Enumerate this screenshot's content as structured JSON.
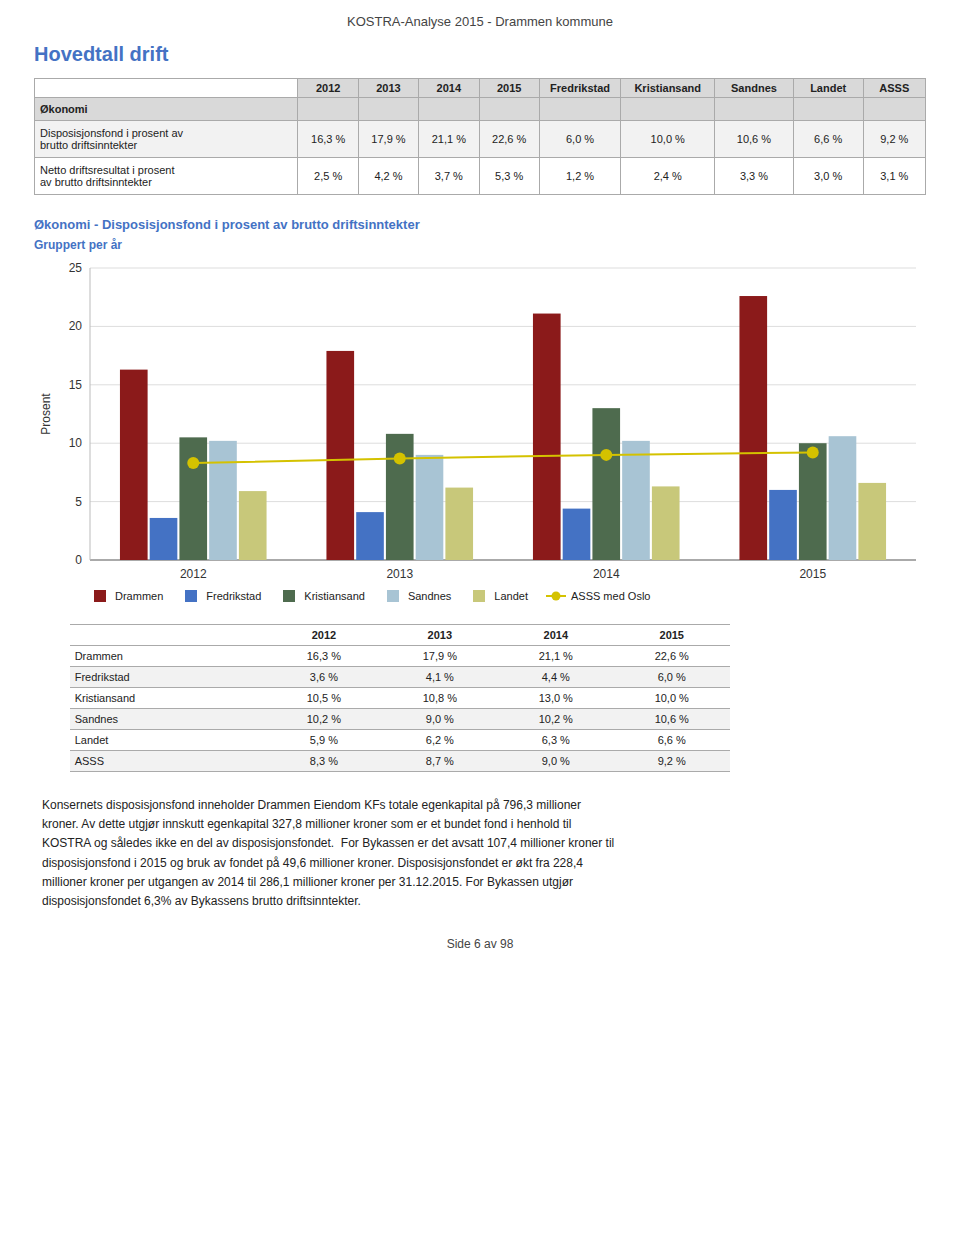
{
  "page_title": "KOSTRA-Analyse 2015 - Drammen kommune",
  "section_title": "Hovedtall drift",
  "table1": {
    "headers": [
      null,
      "2012",
      "2013",
      "2014",
      "2015",
      "Fredrikstad",
      "Kristiansand",
      "Sandnes",
      "Landet",
      "ASSS"
    ],
    "rows": [
      [
        "Økonomi",
        null,
        null,
        null,
        null,
        null,
        null,
        null,
        null,
        null
      ],
      [
        "Disposisjonsfond i prosent av\nbrutto driftsinntekter",
        "16,3 %",
        "17,9 %",
        "21,1 %",
        "22,6 %",
        "6,0 %",
        "10,0 %",
        "10,6 %",
        "6,6 %",
        "9,2 %"
      ],
      [
        "Netto driftsresultat i prosent\nav brutto driftsinntekter",
        "2,5 %",
        "4,2 %",
        "3,7 %",
        "5,3 %",
        "1,2 %",
        "2,4 %",
        "3,3 %",
        "3,0 %",
        "3,1 %"
      ]
    ]
  },
  "chart_data": {
    "type": "bar",
    "title": "Økonomi - Disposisjonsfond i prosent av brutto driftsinntekter",
    "subtitle": "Gruppert per år",
    "y_label": "Prosent",
    "categories": [
      "2012",
      "2013",
      "2014",
      "2015"
    ],
    "series": [
      {
        "name": "Drammen",
        "color": "#8B1A1A",
        "values": [
          16.3,
          17.9,
          21.1,
          22.6
        ]
      },
      {
        "name": "Fredrikstad",
        "color": "#4472C4",
        "values": [
          3.6,
          4.1,
          4.4,
          6.0
        ]
      },
      {
        "name": "Kristiansand",
        "color": "#4E6B4E",
        "values": [
          10.5,
          10.8,
          13.0,
          10.0
        ]
      },
      {
        "name": "Sandnes",
        "color": "#A8C4D4",
        "values": [
          10.2,
          9.0,
          10.2,
          10.6
        ]
      },
      {
        "name": "Landet",
        "color": "#C8C87A",
        "values": [
          5.9,
          6.2,
          6.3,
          6.6
        ]
      },
      {
        "name": "ASSS med Oslo",
        "type": "line",
        "marker": "circle",
        "color": "#D4C200",
        "values": [
          8.3,
          8.7,
          9.0,
          9.2
        ]
      }
    ],
    "ylim": [
      0,
      25
    ],
    "yticks": [
      0,
      5,
      10,
      15,
      20,
      25
    ],
    "grid": true,
    "legend": "bottom"
  },
  "table2": {
    "headers": [
      null,
      "2012",
      "2013",
      "2014",
      "2015"
    ],
    "rows": [
      [
        "Drammen",
        "16,3 %",
        "17,9 %",
        "21,1 %",
        "22,6 %"
      ],
      [
        "Fredrikstad",
        "3,6 %",
        "4,1 %",
        "4,4 %",
        "6,0 %"
      ],
      [
        "Kristiansand",
        "10,5 %",
        "10,8 %",
        "13,0 %",
        "10,0 %"
      ],
      [
        "Sandnes",
        "10,2 %",
        "9,0 %",
        "10,2 %",
        "10,6 %"
      ],
      [
        "Landet",
        "5,9 %",
        "6,2 %",
        "6,3 %",
        "6,6 %"
      ],
      [
        "ASSS",
        "8,3 %",
        "8,7 %",
        "9,0 %",
        "9,2 %"
      ]
    ]
  },
  "body_text": "Konsernets disposisjonsfond inneholder Drammen Eiendom KFs totale egenkapital på 796,3 millioner\nkroner. Av dette utgjør innskutt egenkapital 327,8 millioner kroner som er et bundet fond i henhold til\nKOSTRA og således ikke en del av disposisjonsfondet.  For Bykassen er det avsatt 107,4 millioner kroner til\ndisposisjonsfond i 2015 og bruk av fondet på 49,6 millioner kroner. Disposisjonsfondet er økt fra 228,4\nmillioner kroner per utgangen av 2014 til 286,1 millioner kroner per 31.12.2015. For Bykassen utgjør\ndisposisjonsfondet 6,3% av Bykassens brutto driftsinntekter.",
  "footer": "Side 6 av 98"
}
